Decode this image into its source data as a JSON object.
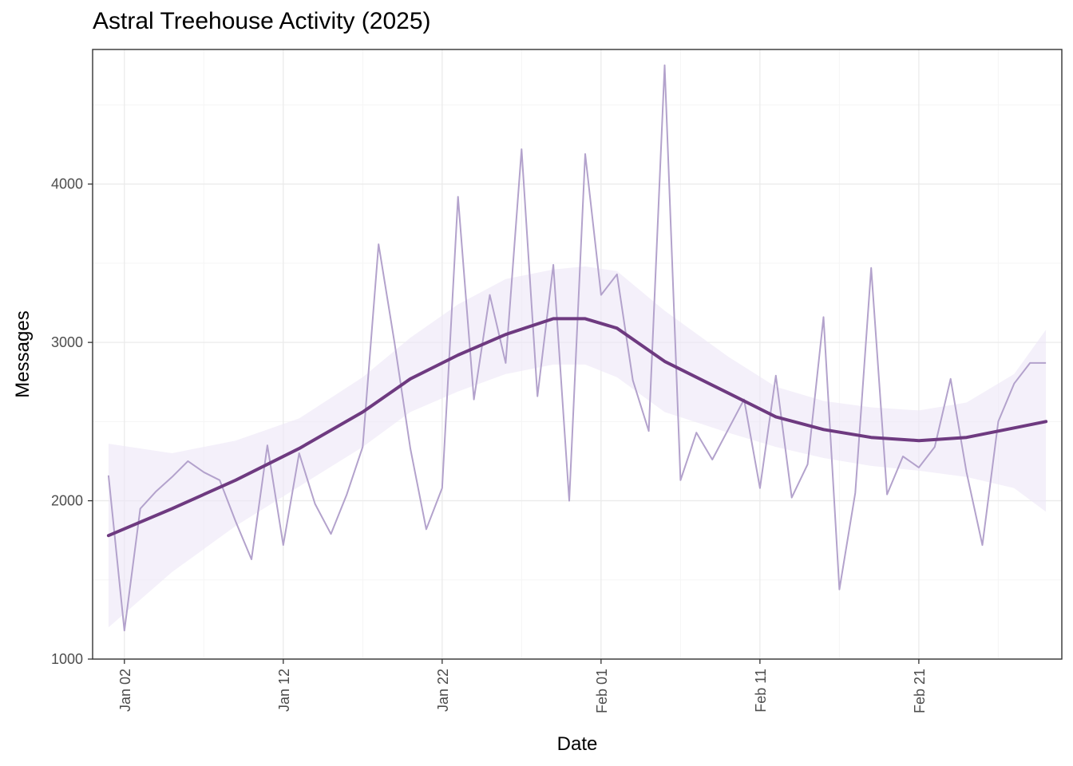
{
  "chart_data": {
    "type": "line",
    "title": "Astral Treehouse Activity (2025)",
    "xlabel": "Date",
    "ylabel": "Messages",
    "x_axis_kind": "date",
    "xlim": [
      "2024-12-31",
      "2025-03-02"
    ],
    "ylim": [
      1000,
      4850
    ],
    "y_ticks": [
      1000,
      2000,
      3000,
      4000
    ],
    "x_ticks": [
      {
        "date": "2025-01-02",
        "label": "Jan 02"
      },
      {
        "date": "2025-01-12",
        "label": "Jan 12"
      },
      {
        "date": "2025-01-22",
        "label": "Jan 22"
      },
      {
        "date": "2025-02-01",
        "label": "Feb 01"
      },
      {
        "date": "2025-02-11",
        "label": "Feb 11"
      },
      {
        "date": "2025-02-21",
        "label": "Feb 21"
      }
    ],
    "grid": true,
    "legend": "none",
    "colors": {
      "raw_line": "#b3a2cc",
      "smooth_line": "#6e3a80",
      "band_fill": "#ede6f7"
    },
    "series": [
      {
        "kind": "raw",
        "x": [
          "2025-01-01",
          "2025-01-02",
          "2025-01-03",
          "2025-01-04",
          "2025-01-05",
          "2025-01-06",
          "2025-01-07",
          "2025-01-08",
          "2025-01-09",
          "2025-01-10",
          "2025-01-11",
          "2025-01-12",
          "2025-01-13",
          "2025-01-14",
          "2025-01-15",
          "2025-01-16",
          "2025-01-17",
          "2025-01-18",
          "2025-01-19",
          "2025-01-20",
          "2025-01-21",
          "2025-01-22",
          "2025-01-23",
          "2025-01-24",
          "2025-01-25",
          "2025-01-26",
          "2025-01-27",
          "2025-01-28",
          "2025-01-29",
          "2025-01-30",
          "2025-01-31",
          "2025-02-01",
          "2025-02-02",
          "2025-02-03",
          "2025-02-04",
          "2025-02-05",
          "2025-02-06",
          "2025-02-07",
          "2025-02-08",
          "2025-02-09",
          "2025-02-10",
          "2025-02-11",
          "2025-02-12",
          "2025-02-13",
          "2025-02-14",
          "2025-02-15",
          "2025-02-16",
          "2025-02-17",
          "2025-02-18",
          "2025-02-19",
          "2025-02-20",
          "2025-02-21",
          "2025-02-22",
          "2025-02-23",
          "2025-02-24",
          "2025-02-25",
          "2025-02-26",
          "2025-02-27",
          "2025-02-28",
          "2025-03-01"
        ],
        "y": [
          2160,
          1180,
          1950,
          2060,
          2150,
          2250,
          2180,
          2130,
          1870,
          1630,
          2350,
          1720,
          2300,
          1980,
          1790,
          2040,
          2340,
          3620,
          3000,
          2330,
          1820,
          2080,
          3920,
          2640,
          3300,
          2870,
          4220,
          2660,
          3490,
          2000,
          4190,
          3300,
          3430,
          2760,
          2440,
          4750,
          2130,
          2430,
          2260,
          2450,
          2640,
          2080,
          2790,
          2020,
          2230,
          3160,
          1440,
          2050,
          3470,
          2040,
          2280,
          2210,
          2340,
          2770,
          2180,
          1720,
          2500,
          2740,
          2870,
          2870
        ]
      },
      {
        "kind": "smooth",
        "x": [
          "2025-01-01",
          "2025-01-05",
          "2025-01-09",
          "2025-01-13",
          "2025-01-17",
          "2025-01-20",
          "2025-01-23",
          "2025-01-26",
          "2025-01-29",
          "2025-01-31",
          "2025-02-02",
          "2025-02-05",
          "2025-02-09",
          "2025-02-12",
          "2025-02-15",
          "2025-02-18",
          "2025-02-21",
          "2025-02-24",
          "2025-02-27",
          "2025-03-01"
        ],
        "y": [
          1780,
          1950,
          2130,
          2330,
          2560,
          2770,
          2920,
          3050,
          3150,
          3150,
          3090,
          2880,
          2680,
          2530,
          2450,
          2400,
          2380,
          2400,
          2460,
          2500
        ],
        "ci_upper": [
          2360,
          2300,
          2380,
          2520,
          2780,
          3030,
          3240,
          3400,
          3460,
          3480,
          3450,
          3200,
          2910,
          2720,
          2630,
          2590,
          2570,
          2620,
          2800,
          3080
        ],
        "ci_lower": [
          1200,
          1550,
          1840,
          2090,
          2340,
          2560,
          2690,
          2800,
          2860,
          2860,
          2780,
          2560,
          2430,
          2340,
          2270,
          2220,
          2190,
          2150,
          2080,
          1930
        ]
      }
    ]
  }
}
